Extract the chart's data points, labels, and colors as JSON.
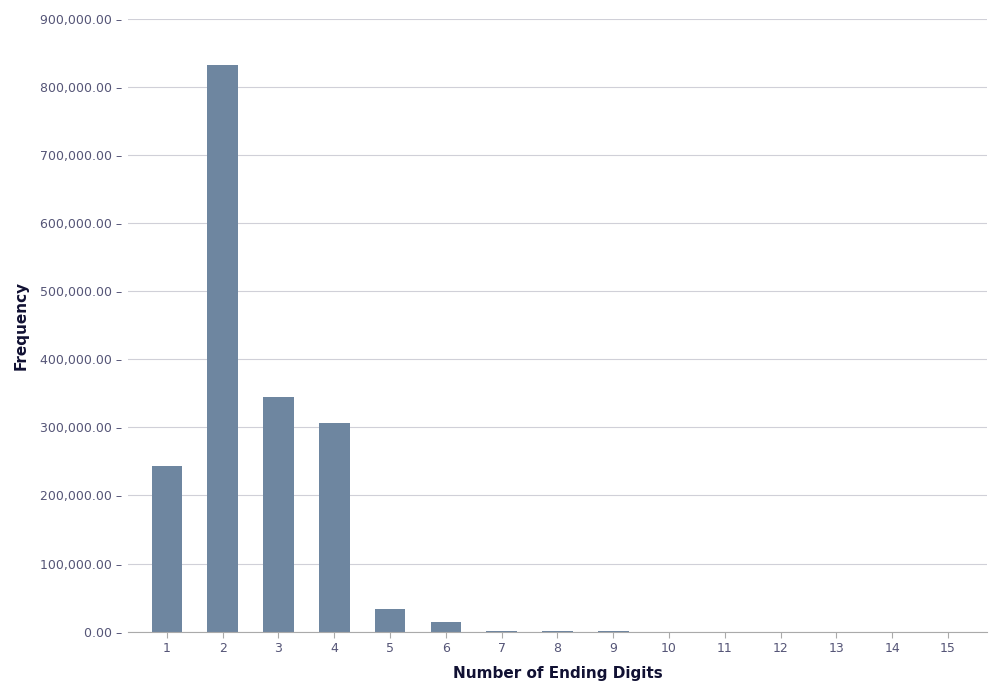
{
  "categories": [
    1,
    2,
    3,
    4,
    5,
    6,
    7,
    8,
    9,
    10,
    11,
    12,
    13,
    14,
    15
  ],
  "values": [
    243000,
    833000,
    345000,
    307000,
    33000,
    14000,
    1500,
    400,
    200,
    100,
    80,
    50,
    30,
    20,
    10
  ],
  "bar_color": "#6e86a0",
  "xlabel": "Number of Ending Digits",
  "ylabel": "Frequency",
  "ylim": [
    0,
    900000
  ],
  "ytick_step": 100000,
  "background_color": "#ffffff",
  "grid_color": "#d0d0d8",
  "bar_width": 0.55,
  "axis_label_fontsize": 11,
  "tick_fontsize": 9,
  "tick_color": "#555577"
}
